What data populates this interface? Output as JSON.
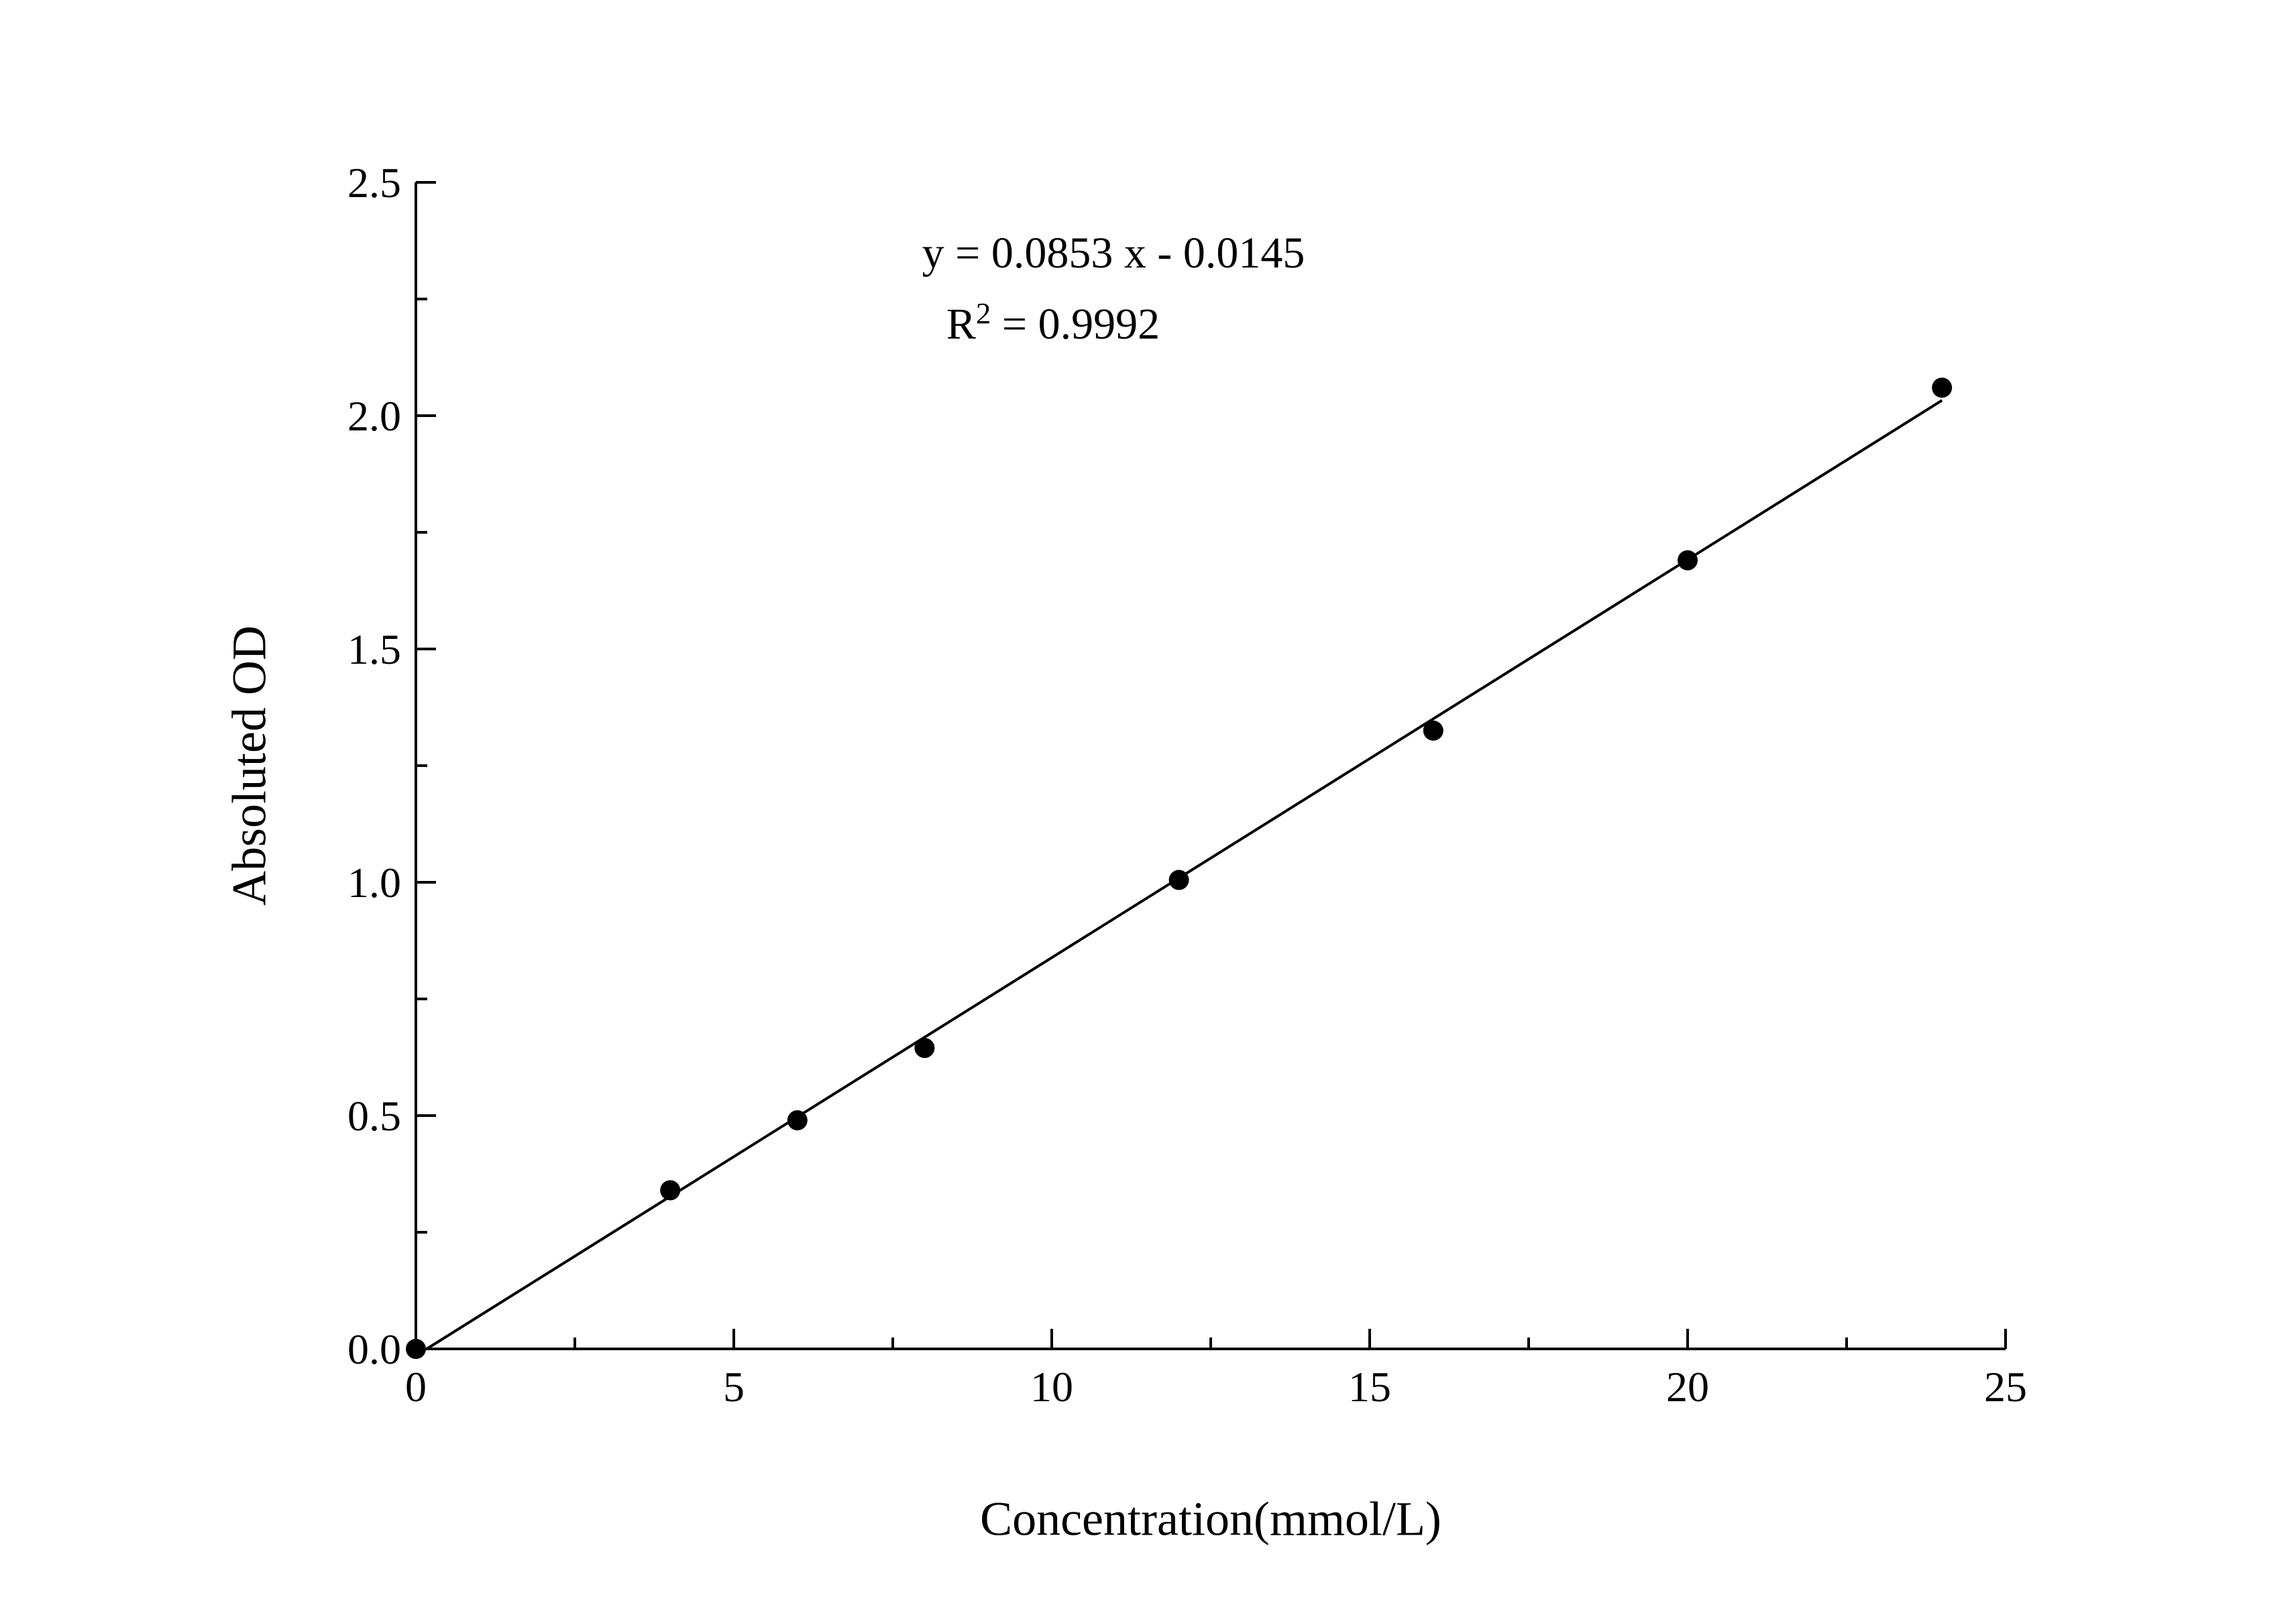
{
  "chart_data": {
    "type": "scatter",
    "title": "",
    "xlabel": "Concentration(mmol/L)",
    "ylabel": "Absoluted OD",
    "x": [
      0,
      4,
      6,
      8,
      12,
      16,
      20,
      24
    ],
    "y": [
      0.0,
      0.34,
      0.49,
      0.645,
      1.005,
      1.325,
      1.69,
      2.06
    ],
    "xlim": [
      0,
      25
    ],
    "ylim": [
      0,
      2.5
    ],
    "x_major_ticks": [
      0,
      5,
      10,
      15,
      20,
      25
    ],
    "x_tick_labels": [
      "0",
      "5",
      "10",
      "15",
      "20",
      "25"
    ],
    "y_major_ticks": [
      0,
      0.5,
      1.0,
      1.5,
      2.0,
      2.5
    ],
    "y_tick_labels": [
      "0.0",
      "0.5",
      "1.0",
      "1.5",
      "2.0",
      "2.5"
    ],
    "x_minor_step": 2.5,
    "y_minor_step": 0.25,
    "grid": "off",
    "legend": "none",
    "fit": {
      "slope": 0.0853,
      "intercept": -0.0145,
      "x_end": 24
    },
    "annotation": {
      "equation": "y = 0.0853 x - 0.0145",
      "r2_base": "R",
      "r2_sup": "2",
      "r2_rest": " = 0.9992"
    },
    "colors": {
      "marker": "#000000",
      "line": "#000000",
      "axis": "#000000",
      "background": "#ffffff"
    }
  }
}
